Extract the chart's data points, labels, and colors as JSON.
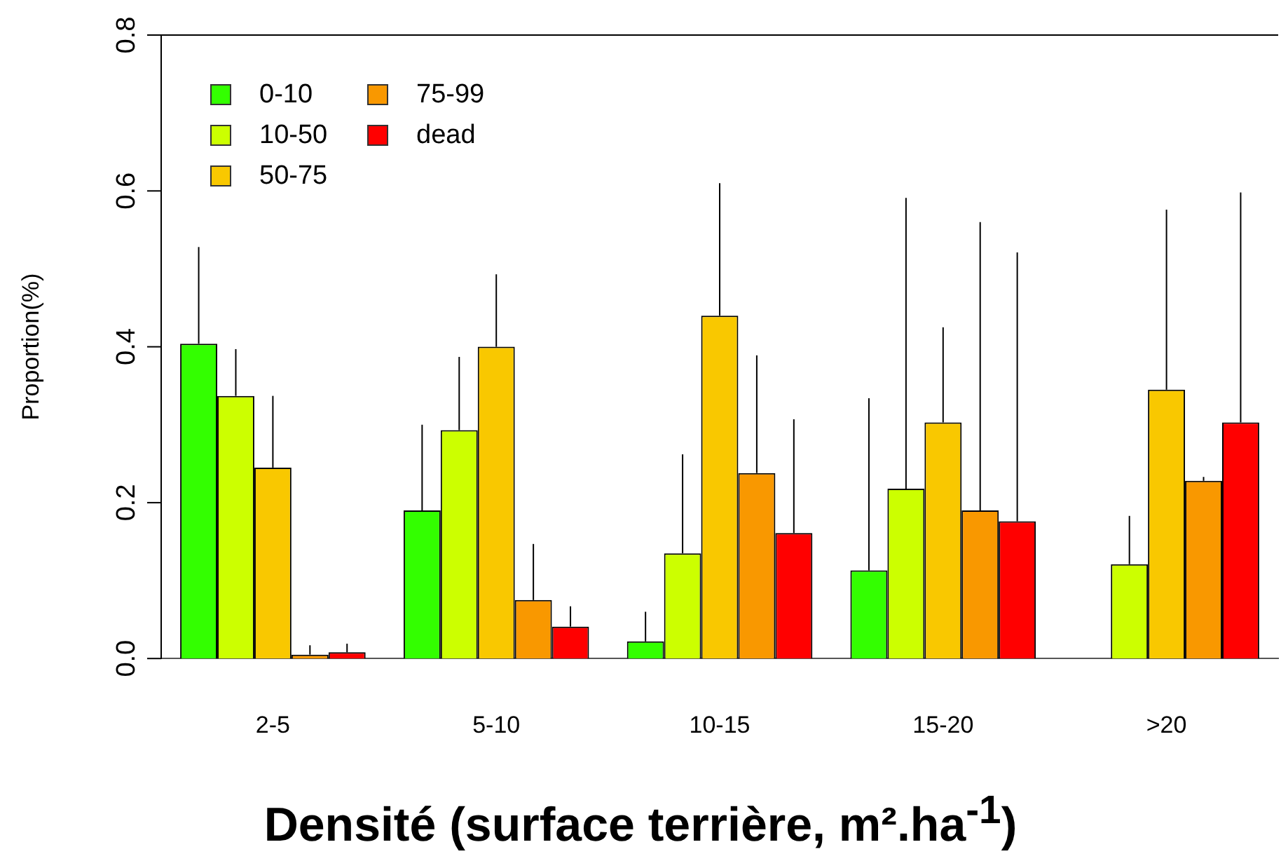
{
  "chart_data": {
    "type": "bar",
    "xlabel": "Densité (surface terrière, m².ha$^{-1}$)",
    "ylabel": "Proportion(%)",
    "categories": [
      "2-5",
      "5-10",
      "10-15",
      "15-20",
      ">20"
    ],
    "series": [
      {
        "name": "0-10",
        "color": "#33ff00",
        "values": [
          0.404,
          0.19,
          0.022,
          0.113,
          0
        ],
        "errors": [
          [
            0.404,
            0.528
          ],
          [
            0.19,
            0.3
          ],
          [
            0.022,
            0.06
          ],
          [
            0.113,
            0.334
          ],
          null
        ]
      },
      {
        "name": "10-50",
        "color": "#ccff00",
        "values": [
          0.337,
          0.293,
          0.135,
          0.218,
          0.121
        ],
        "errors": [
          [
            0.337,
            0.397
          ],
          [
            0.293,
            0.387
          ],
          [
            0.135,
            0.262
          ],
          [
            0.218,
            0.591
          ],
          [
            0.121,
            0.183
          ]
        ]
      },
      {
        "name": "50-75",
        "color": "#f9c800",
        "values": [
          0.245,
          0.4,
          0.44,
          0.303,
          0.345
        ],
        "errors": [
          [
            0.245,
            0.337
          ],
          [
            0.4,
            0.493
          ],
          [
            0.44,
            0.61
          ],
          [
            0.303,
            0.425
          ],
          [
            0.345,
            0.576
          ]
        ]
      },
      {
        "name": "75-99",
        "color": "#f99800",
        "values": [
          0.005,
          0.075,
          0.238,
          0.19,
          0.228
        ],
        "errors": [
          [
            0.005,
            0.017
          ],
          [
            0.075,
            0.147
          ],
          [
            0.238,
            0.389
          ],
          [
            0.19,
            0.56
          ],
          [
            0.228,
            0.233
          ]
        ]
      },
      {
        "name": "dead",
        "color": "#ff0000",
        "values": [
          0.008,
          0.041,
          0.161,
          0.176,
          0.303
        ],
        "errors": [
          [
            0.008,
            0.019
          ],
          [
            0.041,
            0.067
          ],
          [
            0.161,
            0.307
          ],
          [
            0.176,
            0.521
          ],
          [
            0.303,
            0.598
          ]
        ]
      }
    ],
    "ylim": [
      0,
      0.8
    ],
    "yticks": [
      {
        "value": 0,
        "label": "0.0"
      },
      0.2,
      0.4,
      0.6,
      0.8
    ],
    "ref_lines": [
      {
        "axis": "y",
        "value": 0.8,
        "color": "#000000"
      }
    ],
    "legend": "top left",
    "grid": false
  }
}
